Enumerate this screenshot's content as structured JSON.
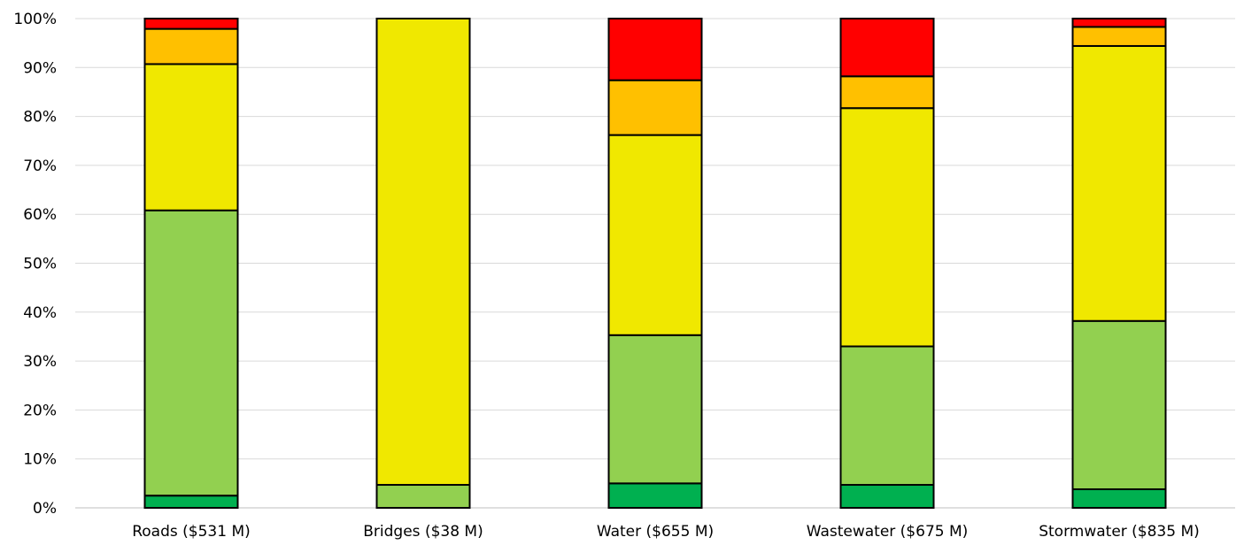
{
  "chart_data": {
    "type": "bar",
    "stacked": true,
    "orientation": "vertical",
    "categories": [
      "Roads ($531 M)",
      "Bridges ($38 M)",
      "Water ($655 M)",
      "Wastewater ($675 M)",
      "Stormwater ($835 M)"
    ],
    "y_ticks": [
      "0%",
      "10%",
      "20%",
      "30%",
      "40%",
      "50%",
      "60%",
      "70%",
      "80%",
      "90%",
      "100%"
    ],
    "ylim": [
      0,
      100
    ],
    "grid": true,
    "legend": "none",
    "series": [
      {
        "color": "#00b050",
        "values": [
          2.5,
          0,
          5.0,
          4.7,
          3.8
        ]
      },
      {
        "color": "#92d050",
        "values": [
          58.3,
          4.7,
          30.3,
          28.3,
          34.4
        ]
      },
      {
        "color": "#f0e800",
        "values": [
          29.9,
          95.3,
          40.9,
          48.7,
          56.2
        ]
      },
      {
        "color": "#ffc000",
        "values": [
          7.2,
          0,
          11.2,
          6.5,
          3.9
        ]
      },
      {
        "color": "#ff0000",
        "values": [
          2.1,
          0,
          12.6,
          11.8,
          1.7
        ]
      }
    ]
  }
}
